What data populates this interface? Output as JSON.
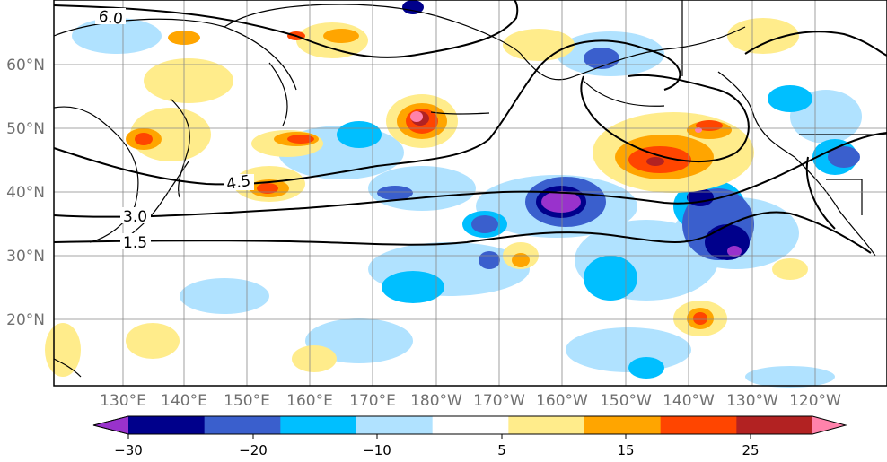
{
  "map": {
    "lon_labels": [
      "130°E",
      "140°E",
      "150°E",
      "160°E",
      "170°E",
      "180°W",
      "170°W",
      "160°W",
      "150°W",
      "140°W",
      "130°W",
      "120°W"
    ],
    "lat_labels": [
      "60°N",
      "50°N",
      "40°N",
      "30°N",
      "20°N"
    ],
    "contour_labels": [
      "6.0",
      "4.5",
      "3.0",
      "1.5"
    ]
  },
  "colorbar": {
    "tick_labels": [
      "−30",
      "−20",
      "−10",
      "5",
      "15",
      "25"
    ],
    "colors": [
      "#9932cc",
      "#00008b",
      "#3a5fcd",
      "#00bfff",
      "#b0e2ff",
      "#ffffff",
      "#ffec8b",
      "#ffa500",
      "#ff4500",
      "#b22222",
      "#ff82ab"
    ]
  }
}
